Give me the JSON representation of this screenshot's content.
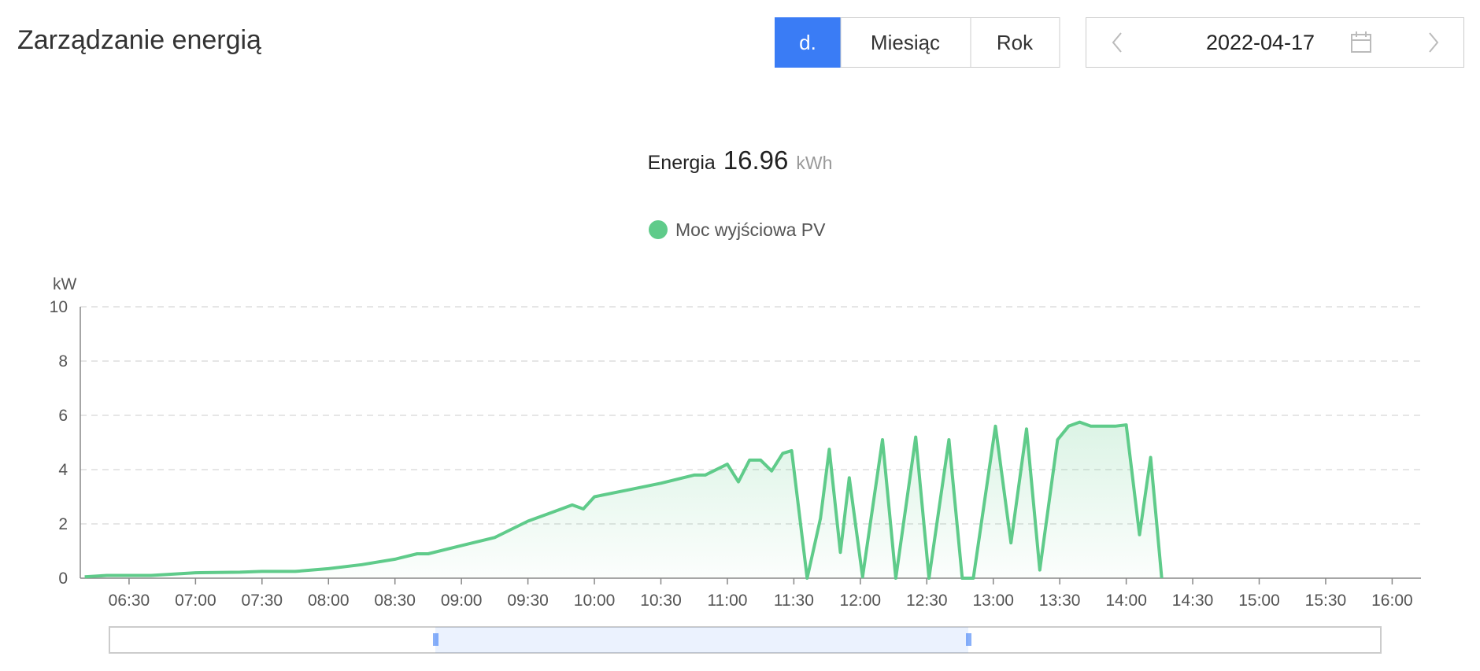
{
  "header": {
    "title": "Zarządzanie energią",
    "buttons": [
      "d.",
      "Miesiąc",
      "Rok"
    ],
    "date": "2022-04-17"
  },
  "summary": {
    "label": "Energia",
    "value": "16.96",
    "unit": "kWh"
  },
  "chart_data": {
    "type": "line",
    "y_label": "kW",
    "x": [
      370,
      380,
      400,
      420,
      440,
      450,
      465,
      480,
      495,
      510,
      520,
      525,
      540,
      555,
      570,
      580,
      590,
      595,
      600,
      615,
      630,
      645,
      650,
      660,
      665,
      670,
      675,
      680,
      685,
      689,
      696,
      702,
      706,
      711,
      715,
      721,
      730,
      736,
      745,
      751,
      760,
      766,
      771,
      781,
      788,
      795,
      801,
      809,
      814,
      819,
      824,
      835,
      840,
      846,
      851,
      856
    ],
    "series": [
      {
        "name": "Moc wyjściowa PV",
        "color": "#5fcb8a",
        "values": [
          0.05,
          0.1,
          0.1,
          0.2,
          0.22,
          0.25,
          0.25,
          0.35,
          0.5,
          0.7,
          0.9,
          0.9,
          1.2,
          1.5,
          2.1,
          2.4,
          2.7,
          2.55,
          3.0,
          3.25,
          3.5,
          3.8,
          3.8,
          4.2,
          3.55,
          4.35,
          4.35,
          3.95,
          4.6,
          4.7,
          0,
          2.2,
          4.75,
          0.95,
          3.7,
          0.05,
          5.1,
          0,
          5.2,
          0,
          5.1,
          0,
          0,
          5.6,
          1.3,
          5.5,
          0.3,
          5.1,
          5.6,
          5.75,
          5.6,
          5.6,
          5.65,
          1.6,
          4.45,
          0
        ]
      }
    ],
    "xlim": [
      368,
      973
    ],
    "xticks": [
      {
        "value": 390,
        "label": "06:30"
      },
      {
        "value": 420,
        "label": "07:00"
      },
      {
        "value": 450,
        "label": "07:30"
      },
      {
        "value": 480,
        "label": "08:00"
      },
      {
        "value": 510,
        "label": "08:30"
      },
      {
        "value": 540,
        "label": "09:00"
      },
      {
        "value": 570,
        "label": "09:30"
      },
      {
        "value": 600,
        "label": "10:00"
      },
      {
        "value": 630,
        "label": "10:30"
      },
      {
        "value": 660,
        "label": "11:00"
      },
      {
        "value": 690,
        "label": "11:30"
      },
      {
        "value": 720,
        "label": "12:00"
      },
      {
        "value": 750,
        "label": "12:30"
      },
      {
        "value": 780,
        "label": "13:00"
      },
      {
        "value": 810,
        "label": "13:30"
      },
      {
        "value": 840,
        "label": "14:00"
      },
      {
        "value": 870,
        "label": "14:30"
      },
      {
        "value": 900,
        "label": "15:00"
      },
      {
        "value": 930,
        "label": "15:30"
      },
      {
        "value": 960,
        "label": "16:00"
      }
    ],
    "ylim": [
      0,
      10
    ],
    "yticks": [
      0,
      2,
      4,
      6,
      8,
      10
    ],
    "grid": true,
    "legend": "top"
  }
}
